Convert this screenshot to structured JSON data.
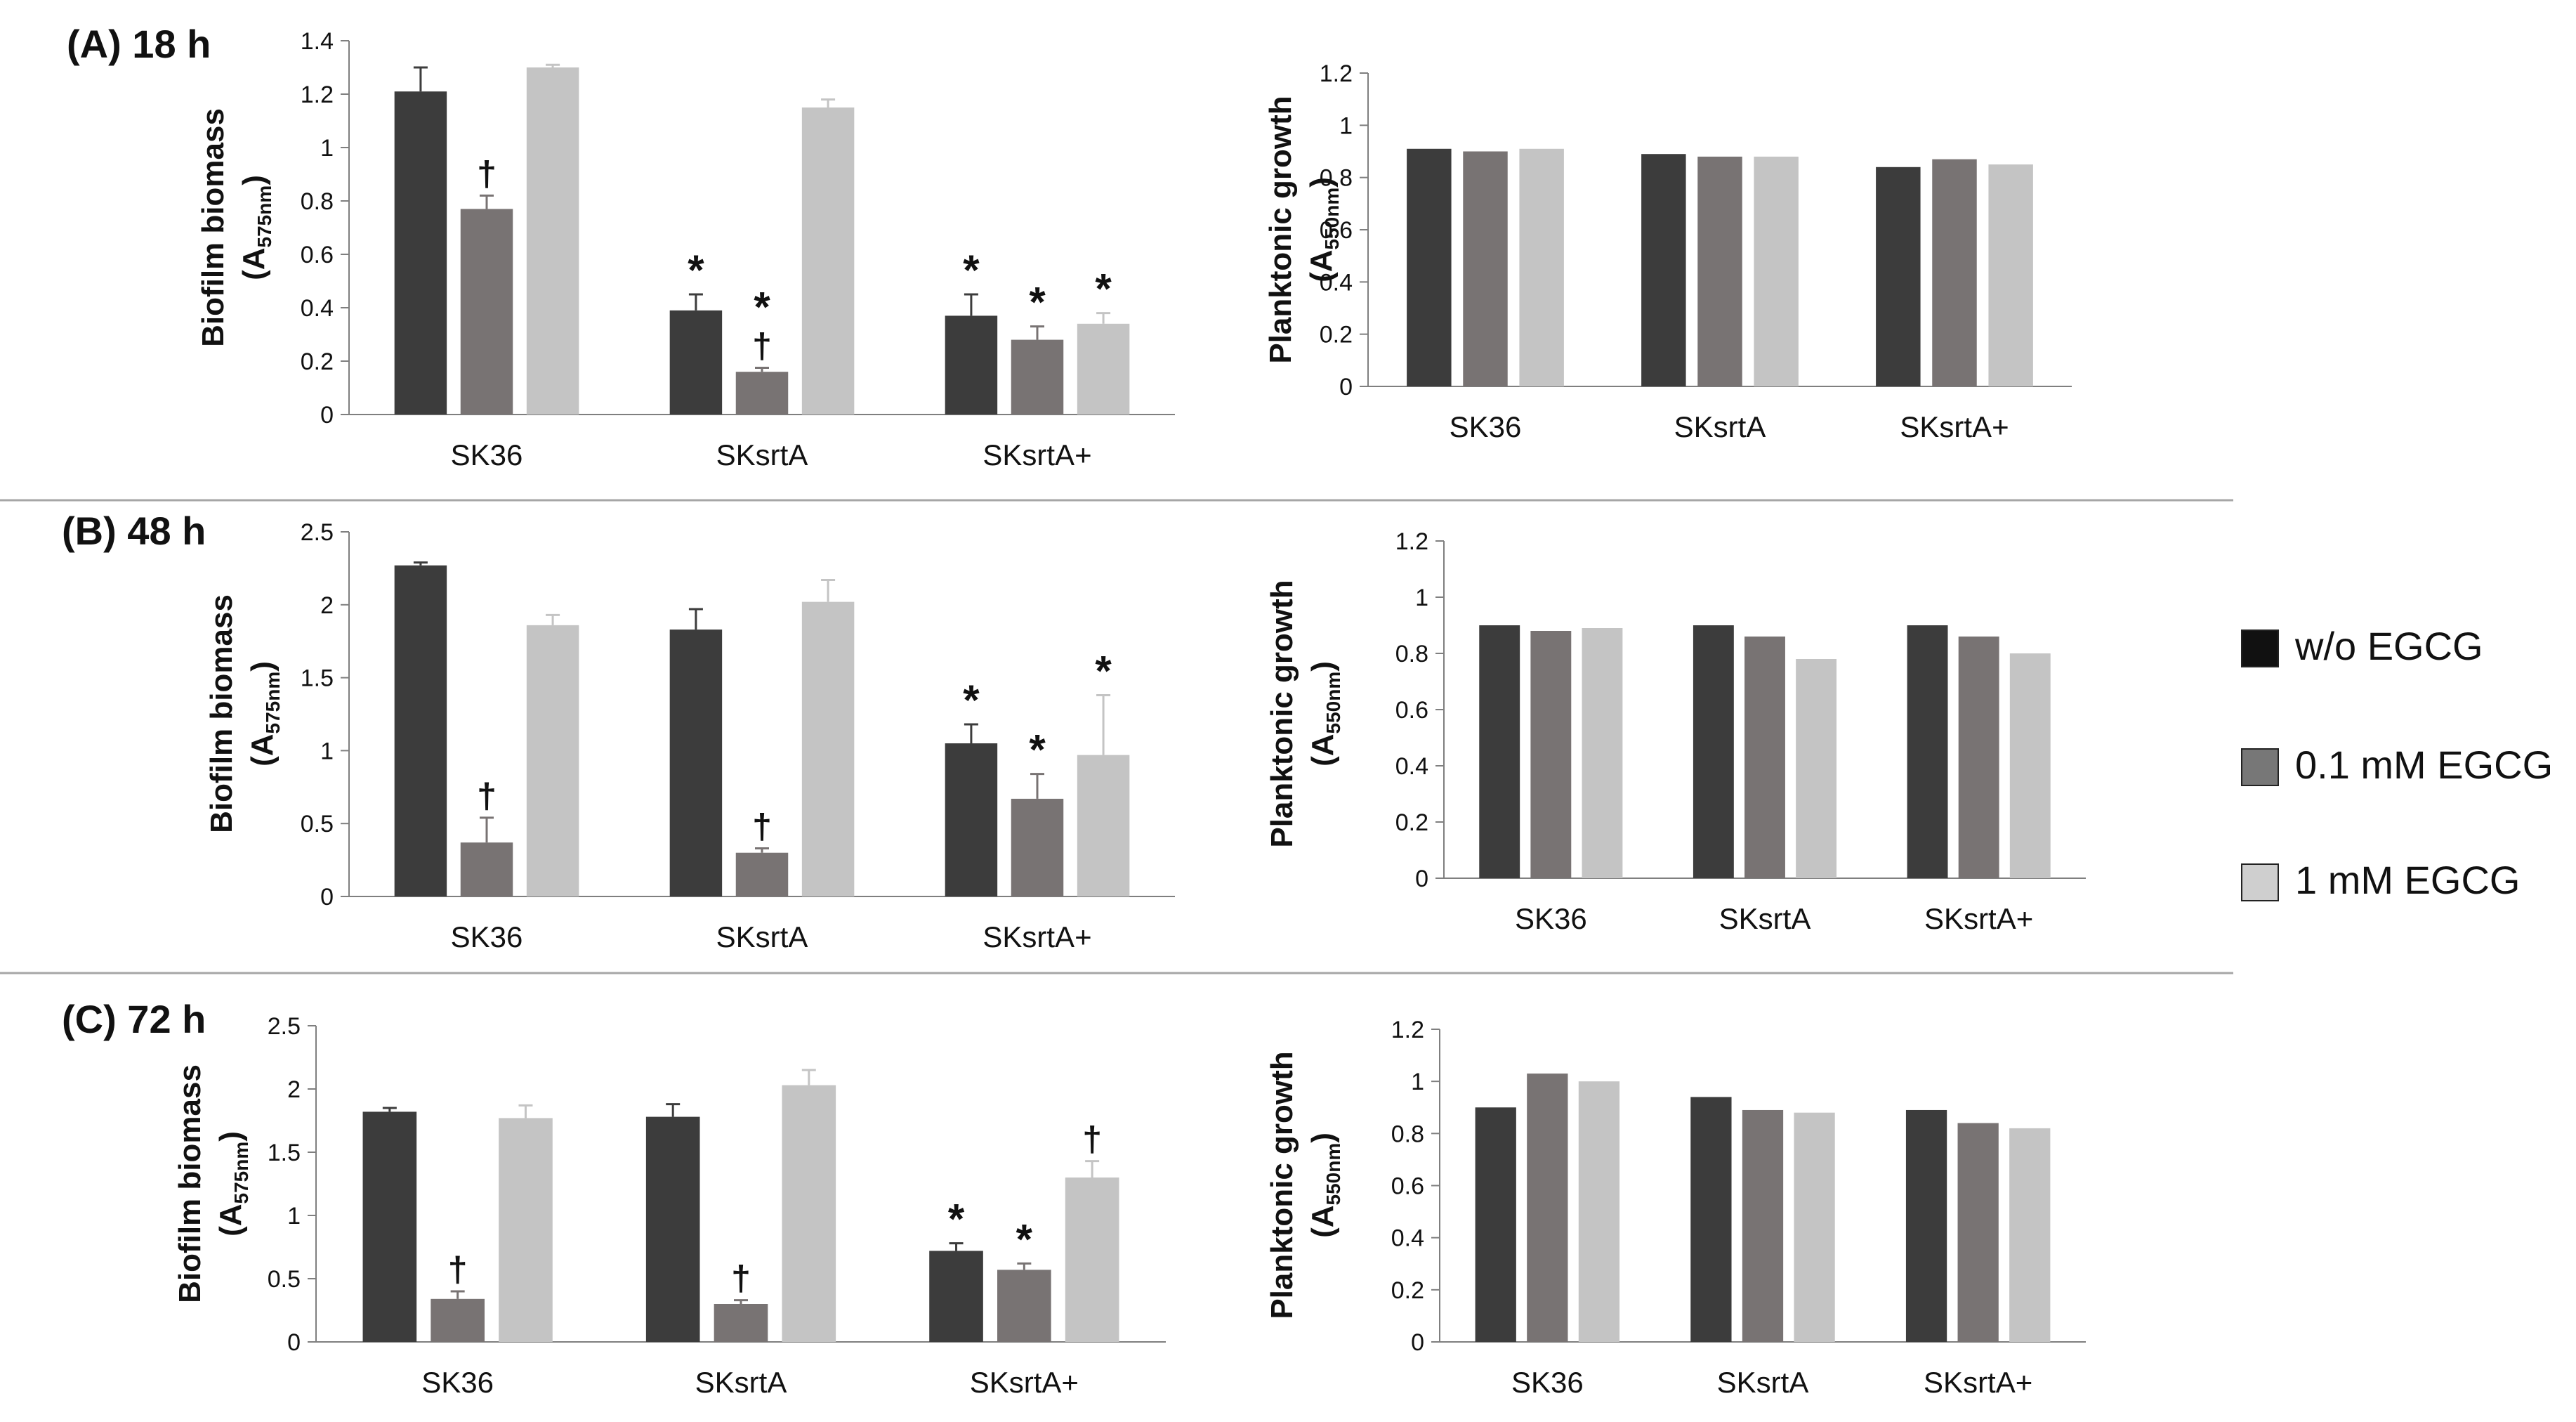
{
  "colors": {
    "without": "#3c3c3c",
    "low": "#787373",
    "high": "#c4c4c4",
    "axis": "#7f7f7f",
    "separator": "#a6a6a6",
    "text": "#111111"
  },
  "legend": {
    "items": [
      {
        "label": "w/o EGCG",
        "color": "#111111"
      },
      {
        "label": "0.1 mM EGCG",
        "color": "#777777"
      },
      {
        "label": "1 mM EGCG",
        "color": "#cfcfcf"
      }
    ]
  },
  "chart_data": [
    {
      "id": "A-biofilm",
      "panel_label": "(A) 18 h",
      "type": "bar",
      "ylabel": "Biofilm biomass",
      "ylabel_sub_base": "A",
      "ylabel_sub": "575nm",
      "ylim": [
        0,
        1.4
      ],
      "ytick_labels": [
        "0",
        "0.2",
        "0.4",
        "0.6",
        "0.8",
        "1",
        "1.2",
        "1.4"
      ],
      "categories": [
        "SK36",
        "SKsrtA",
        "SKsrtA+"
      ],
      "series": [
        {
          "name": "w/o EGCG",
          "values": [
            1.21,
            0.39,
            0.37
          ],
          "errors": [
            0.09,
            0.06,
            0.08
          ],
          "marks": [
            "",
            "*",
            "*"
          ]
        },
        {
          "name": "0.1 mM EGCG",
          "values": [
            0.77,
            0.16,
            0.28
          ],
          "errors": [
            0.05,
            0.015,
            0.05
          ],
          "marks": [
            "†",
            "*\n†",
            "*"
          ]
        },
        {
          "name": "1 mM EGCG",
          "values": [
            1.3,
            1.15,
            0.34
          ],
          "errors": [
            0.01,
            0.03,
            0.04
          ],
          "marks": [
            "",
            "",
            "*"
          ]
        }
      ]
    },
    {
      "id": "A-planktonic",
      "type": "bar",
      "ylabel": "Planktonic growth",
      "ylabel_sub_base": "A",
      "ylabel_sub": "550nm",
      "ylim": [
        0,
        1.2
      ],
      "ytick_labels": [
        "0",
        "0.2",
        "0.4",
        "0.6",
        "0.8",
        "1",
        "1.2"
      ],
      "categories": [
        "SK36",
        "SKsrtA",
        "SKsrtA+"
      ],
      "series": [
        {
          "name": "w/o EGCG",
          "values": [
            0.91,
            0.89,
            0.84
          ]
        },
        {
          "name": "0.1 mM EGCG",
          "values": [
            0.9,
            0.88,
            0.87
          ]
        },
        {
          "name": "1 mM EGCG",
          "values": [
            0.91,
            0.88,
            0.85
          ]
        }
      ]
    },
    {
      "id": "B-biofilm",
      "panel_label": "(B) 48 h",
      "type": "bar",
      "ylabel": "Biofilm biomass",
      "ylabel_sub_base": "A",
      "ylabel_sub": "575nm",
      "ylim": [
        0,
        2.5
      ],
      "ytick_labels": [
        "0",
        "0.5",
        "1",
        "1.5",
        "2",
        "2.5"
      ],
      "categories": [
        "SK36",
        "SKsrtA",
        "SKsrtA+"
      ],
      "series": [
        {
          "name": "w/o EGCG",
          "values": [
            2.27,
            1.83,
            1.05
          ],
          "errors": [
            0.02,
            0.14,
            0.13
          ],
          "marks": [
            "",
            "",
            "*"
          ]
        },
        {
          "name": "0.1 mM EGCG",
          "values": [
            0.37,
            0.3,
            0.67
          ],
          "errors": [
            0.17,
            0.03,
            0.17
          ],
          "marks": [
            "†",
            "†",
            "*"
          ]
        },
        {
          "name": "1 mM EGCG",
          "values": [
            1.86,
            2.02,
            0.97
          ],
          "errors": [
            0.07,
            0.15,
            0.41
          ],
          "marks": [
            "",
            "",
            "*"
          ]
        }
      ]
    },
    {
      "id": "B-planktonic",
      "type": "bar",
      "ylabel": "Planktonic growth",
      "ylabel_sub_base": "A",
      "ylabel_sub": "550nm",
      "ylim": [
        0,
        1.2
      ],
      "ytick_labels": [
        "0",
        "0.2",
        "0.4",
        "0.6",
        "0.8",
        "1",
        "1.2"
      ],
      "categories": [
        "SK36",
        "SKsrtA",
        "SKsrtA+"
      ],
      "series": [
        {
          "name": "w/o EGCG",
          "values": [
            0.9,
            0.9,
            0.9
          ]
        },
        {
          "name": "0.1 mM EGCG",
          "values": [
            0.88,
            0.86,
            0.86
          ]
        },
        {
          "name": "1 mM EGCG",
          "values": [
            0.89,
            0.78,
            0.8
          ]
        }
      ]
    },
    {
      "id": "C-biofilm",
      "panel_label": "(C) 72 h",
      "type": "bar",
      "ylabel": "Biofilm biomass",
      "ylabel_sub_base": "A",
      "ylabel_sub": "575nm",
      "ylim": [
        0,
        2.5
      ],
      "ytick_labels": [
        "0",
        "0.5",
        "1",
        "1.5",
        "2",
        "2.5"
      ],
      "categories": [
        "SK36",
        "SKsrtA",
        "SKsrtA+"
      ],
      "series": [
        {
          "name": "w/o EGCG",
          "values": [
            1.82,
            1.78,
            0.72
          ],
          "errors": [
            0.03,
            0.1,
            0.06
          ],
          "marks": [
            "",
            "",
            "*"
          ]
        },
        {
          "name": "0.1 mM EGCG",
          "values": [
            0.34,
            0.3,
            0.57
          ],
          "errors": [
            0.06,
            0.03,
            0.05
          ],
          "marks": [
            "†",
            "†",
            "*"
          ]
        },
        {
          "name": "1 mM EGCG",
          "values": [
            1.77,
            2.03,
            1.3
          ],
          "errors": [
            0.1,
            0.12,
            0.13
          ],
          "marks": [
            "",
            "",
            "†"
          ]
        }
      ]
    },
    {
      "id": "C-planktonic",
      "type": "bar",
      "ylabel": "Planktonic growth",
      "ylabel_sub_base": "A",
      "ylabel_sub": "550nm",
      "ylim": [
        0,
        1.2
      ],
      "ytick_labels": [
        "0",
        "0.2",
        "0.4",
        "0.6",
        "0.8",
        "1",
        "1.2"
      ],
      "categories": [
        "SK36",
        "SKsrtA",
        "SKsrtA+"
      ],
      "series": [
        {
          "name": "w/o EGCG",
          "values": [
            0.9,
            0.94,
            0.89
          ]
        },
        {
          "name": "0.1 mM EGCG",
          "values": [
            1.03,
            0.89,
            0.84
          ]
        },
        {
          "name": "1 mM EGCG",
          "values": [
            1.0,
            0.88,
            0.82
          ]
        }
      ]
    }
  ]
}
